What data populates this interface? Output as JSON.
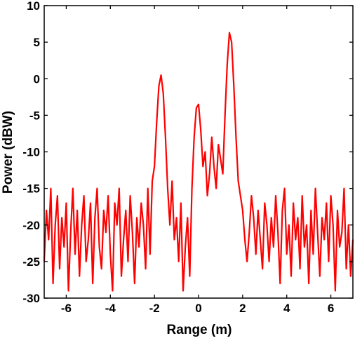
{
  "chart_data": {
    "type": "line",
    "xlabel": "Range (m)",
    "ylabel": "Power (dBW)",
    "xlim": [
      -7,
      7
    ],
    "ylim": [
      -30,
      10
    ],
    "xticks": [
      -6,
      -4,
      -2,
      0,
      2,
      4,
      6
    ],
    "yticks": [
      -30,
      -25,
      -20,
      -15,
      -10,
      -5,
      0,
      5,
      10
    ],
    "grid": false,
    "series": [
      {
        "color": "#ff0000",
        "x": [
          -7.0,
          -6.9,
          -6.8,
          -6.7,
          -6.6,
          -6.5,
          -6.4,
          -6.3,
          -6.2,
          -6.1,
          -6.0,
          -5.9,
          -5.8,
          -5.7,
          -5.6,
          -5.5,
          -5.4,
          -5.3,
          -5.2,
          -5.1,
          -5.0,
          -4.9,
          -4.8,
          -4.7,
          -4.6,
          -4.5,
          -4.4,
          -4.3,
          -4.2,
          -4.1,
          -4.0,
          -3.9,
          -3.8,
          -3.7,
          -3.6,
          -3.5,
          -3.4,
          -3.3,
          -3.2,
          -3.1,
          -3.0,
          -2.9,
          -2.8,
          -2.7,
          -2.6,
          -2.5,
          -2.4,
          -2.3,
          -2.2,
          -2.1,
          -2.0,
          -1.9,
          -1.8,
          -1.7,
          -1.6,
          -1.5,
          -1.4,
          -1.3,
          -1.2,
          -1.1,
          -1.0,
          -0.9,
          -0.8,
          -0.7,
          -0.6,
          -0.5,
          -0.4,
          -0.3,
          -0.2,
          -0.1,
          0.0,
          0.1,
          0.2,
          0.3,
          0.4,
          0.5,
          0.6,
          0.7,
          0.8,
          0.9,
          1.0,
          1.1,
          1.2,
          1.3,
          1.4,
          1.5,
          1.6,
          1.7,
          1.8,
          1.9,
          2.0,
          2.1,
          2.2,
          2.3,
          2.4,
          2.5,
          2.6,
          2.7,
          2.8,
          2.9,
          3.0,
          3.1,
          3.2,
          3.3,
          3.4,
          3.5,
          3.6,
          3.7,
          3.8,
          3.9,
          4.0,
          4.1,
          4.2,
          4.3,
          4.4,
          4.5,
          4.6,
          4.7,
          4.8,
          4.9,
          5.0,
          5.1,
          5.2,
          5.3,
          5.4,
          5.5,
          5.6,
          5.7,
          5.8,
          5.9,
          6.0,
          6.1,
          6.2,
          6.3,
          6.4,
          6.5,
          6.6,
          6.7,
          6.8,
          6.9,
          7.0
        ],
        "y": [
          -25,
          -18,
          -22,
          -15,
          -28,
          -20,
          -16,
          -26,
          -19,
          -23,
          -17,
          -29,
          -21,
          -15,
          -24,
          -18,
          -27,
          -20,
          -16,
          -25,
          -22,
          -17,
          -28,
          -19,
          -15,
          -23,
          -26,
          -18,
          -21,
          -16,
          -24,
          -29,
          -17,
          -20,
          -15,
          -27,
          -22,
          -18,
          -25,
          -16,
          -21,
          -28,
          -19,
          -23,
          -17,
          -20,
          -26,
          -15,
          -24,
          -14,
          -12,
          -6,
          -1,
          0.5,
          -2,
          -8,
          -15,
          -20,
          -14,
          -22,
          -19,
          -25,
          -17,
          -29,
          -23,
          -19,
          -27,
          -15,
          -8,
          -4,
          -3.5,
          -7,
          -12,
          -10,
          -16,
          -13,
          -8,
          -12,
          -15,
          -9,
          -11,
          -13,
          -5,
          2,
          6.3,
          5,
          -1,
          -8,
          -14,
          -16,
          -18,
          -22,
          -25,
          -21,
          -16,
          -19,
          -24,
          -18,
          -22,
          -26,
          -17,
          -20,
          -25,
          -19,
          -23,
          -16,
          -21,
          -28,
          -18,
          -15,
          -24,
          -20,
          -27,
          -17,
          -22,
          -19,
          -26,
          -16,
          -23,
          -20,
          -28,
          -18,
          -24,
          -15,
          -21,
          -27,
          -19,
          -22,
          -17,
          -25,
          -16,
          -20,
          -29,
          -18,
          -23,
          -21,
          -15,
          -26,
          -20,
          -27,
          -22
        ]
      }
    ]
  }
}
